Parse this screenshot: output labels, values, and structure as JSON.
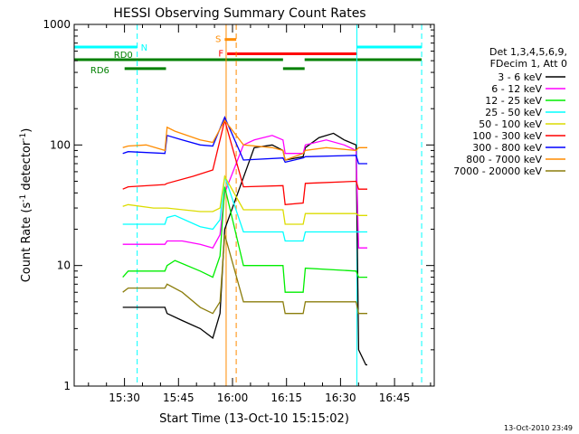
{
  "chart_data": {
    "type": "line",
    "title": "HESSI Observing Summary Count Rates",
    "xlabel": "Start Time (13-Oct-10 15:15:02)",
    "ylabel_parts": [
      "Count Rate (s",
      "-1",
      " detector",
      "-1",
      ")"
    ],
    "x_unit": "minutes since 15:15:02",
    "xlim": [
      0,
      100
    ],
    "ylim": [
      1,
      1000
    ],
    "yscale": "log",
    "xtick_labels": [
      {
        "x": 13.97,
        "label": "15:30"
      },
      {
        "x": 28.97,
        "label": "15:45"
      },
      {
        "x": 43.97,
        "label": "16:00"
      },
      {
        "x": 58.97,
        "label": "16:15"
      },
      {
        "x": 73.97,
        "label": "16:30"
      },
      {
        "x": 88.97,
        "label": "16:45"
      }
    ],
    "ytick_labels": [
      {
        "y": 1,
        "label": "1"
      },
      {
        "y": 10,
        "label": "10"
      },
      {
        "y": 100,
        "label": "100"
      },
      {
        "y": 1000,
        "label": "1000"
      }
    ],
    "legend": {
      "placement": "right",
      "header": [
        "Det 1,3,4,5,6,9,",
        "FDecim 1, Att 0"
      ],
      "entries": [
        {
          "label": "3 - 6 keV",
          "color": "#000000"
        },
        {
          "label": "6 - 12 keV",
          "color": "#ff00ff"
        },
        {
          "label": "12 - 25 keV",
          "color": "#00ee00"
        },
        {
          "label": "25 - 50 keV",
          "color": "#00ffff"
        },
        {
          "label": "50 - 100 keV",
          "color": "#dcdc00"
        },
        {
          "label": "100 - 300 keV",
          "color": "#ff0000"
        },
        {
          "label": "300 - 800 keV",
          "color": "#0000ff"
        },
        {
          "label": "800 - 7000 keV",
          "color": "#ff8c00"
        },
        {
          "label": "7000 - 20000 keV",
          "color": "#8b7d0c"
        }
      ]
    },
    "flag_bars": [
      {
        "label": "N",
        "color": "#00ffff",
        "level": 650,
        "segments": [
          [
            0,
            17.5
          ],
          [
            78.5,
            96.5
          ]
        ]
      },
      {
        "label": "RD0",
        "color": "#008000",
        "level": 510,
        "segments": [
          [
            0,
            58
          ],
          [
            64,
            96.5
          ]
        ]
      },
      {
        "label": "RD6",
        "color": "#008000",
        "level": 430,
        "segments": [
          [
            14,
            25.5
          ],
          [
            58,
            64
          ]
        ]
      },
      {
        "label": "S",
        "color": "#ff8c00",
        "level": 750,
        "segments": [
          [
            41.8,
            45
          ]
        ]
      },
      {
        "label": "F",
        "color": "#ff0000",
        "level": 570,
        "segments": [
          [
            42.5,
            78.5
          ]
        ]
      }
    ],
    "vlines": [
      {
        "x": 17.5,
        "color": "#00ffff",
        "style": "dashed"
      },
      {
        "x": 96.5,
        "color": "#00ffff",
        "style": "dashed"
      },
      {
        "x": 45,
        "color": "#ff8c00",
        "style": "dashed"
      },
      {
        "x": 42.2,
        "color": "#ff8c00",
        "style": "solid"
      },
      {
        "x": 0,
        "color": "#00ffff",
        "style": "solid"
      },
      {
        "x": 78.5,
        "color": "#00ffff",
        "style": "solid"
      }
    ],
    "series": [
      {
        "name": "3 - 6 keV",
        "color": "#000000",
        "x": [
          13.5,
          25.2,
          25.8,
          30,
          35,
          38.5,
          40.5,
          41.8,
          50,
          55,
          58,
          58.6,
          63.6,
          64.2,
          68,
          72,
          75,
          78.3,
          79,
          81,
          81.4
        ],
        "y": [
          4.5,
          4.5,
          4.0,
          3.5,
          3.0,
          2.5,
          4.0,
          20,
          95,
          100,
          90,
          75,
          80,
          95,
          115,
          125,
          110,
          100,
          2.0,
          1.5,
          1.5
        ]
      },
      {
        "name": "6 - 12 keV",
        "color": "#ff00ff",
        "x": [
          13.5,
          25.2,
          25.8,
          30,
          35,
          38.5,
          40.5,
          41.8,
          47,
          50,
          55,
          58,
          58.6,
          63.6,
          64.2,
          70,
          75,
          78.3,
          79,
          81.4
        ],
        "y": [
          15,
          15,
          16,
          16,
          15,
          14,
          18,
          40,
          100,
          110,
          120,
          110,
          85,
          85,
          100,
          110,
          100,
          90,
          14,
          14
        ]
      },
      {
        "name": "12 - 25 keV",
        "color": "#00ee00",
        "x": [
          13.5,
          15,
          25.2,
          25.8,
          28,
          35,
          38.5,
          40.5,
          41.8,
          47,
          58,
          58.6,
          63.6,
          64.2,
          78.3,
          79,
          81.4
        ],
        "y": [
          8,
          9,
          9,
          10,
          11,
          9,
          8,
          12,
          45,
          10,
          10,
          6,
          6,
          9.5,
          9,
          8,
          8
        ]
      },
      {
        "name": "25 - 50 keV",
        "color": "#00ffff",
        "x": [
          13.5,
          15,
          25.2,
          25.8,
          28,
          35,
          38.5,
          40.5,
          41.8,
          47,
          58,
          58.6,
          63.6,
          64.2,
          78.3,
          79,
          81.4
        ],
        "y": [
          22,
          22,
          22,
          25,
          26,
          21,
          20,
          24,
          55,
          19,
          19,
          16,
          16,
          19,
          19,
          19,
          19
        ]
      },
      {
        "name": "50 - 100 keV",
        "color": "#dcdc00",
        "x": [
          13.5,
          15,
          22,
          25.2,
          25.8,
          35,
          38.5,
          40.5,
          41.8,
          47,
          58,
          58.6,
          63.6,
          64.2,
          78.3,
          79,
          81.4
        ],
        "y": [
          31,
          32,
          30,
          30,
          30,
          28,
          28,
          30,
          55,
          29,
          29,
          22,
          22,
          27,
          27,
          26,
          26
        ]
      },
      {
        "name": "100 - 300 keV",
        "color": "#ff0000",
        "x": [
          13.5,
          15,
          25.2,
          25.8,
          33,
          38.5,
          41.8,
          47,
          58,
          58.6,
          63.6,
          64.2,
          78.3,
          79,
          81.4
        ],
        "y": [
          43,
          45,
          47,
          48,
          55,
          62,
          160,
          45,
          46,
          32,
          33,
          48,
          50,
          43,
          43
        ]
      },
      {
        "name": "300 - 800 keV",
        "color": "#0000ff",
        "x": [
          13.5,
          15,
          25.2,
          25.8,
          30,
          35,
          38.5,
          41.8,
          47,
          58,
          58.6,
          63.6,
          64.2,
          78.3,
          79,
          81.4
        ],
        "y": [
          85,
          88,
          85,
          120,
          110,
          100,
          98,
          170,
          75,
          78,
          72,
          78,
          80,
          82,
          70,
          70
        ]
      },
      {
        "name": "800 - 7000 keV",
        "color": "#ff8c00",
        "x": [
          13.5,
          15,
          20,
          25.2,
          25.8,
          28,
          35,
          38.5,
          41.8,
          47,
          55,
          58,
          58.6,
          63.6,
          64.2,
          70,
          78.3,
          79,
          81.4
        ],
        "y": [
          95,
          98,
          100,
          90,
          140,
          130,
          110,
          105,
          160,
          100,
          95,
          90,
          75,
          85,
          90,
          95,
          90,
          95,
          95
        ]
      },
      {
        "name": "7000 - 20000 keV",
        "color": "#8b7d0c",
        "x": [
          13.5,
          15,
          25.2,
          25.8,
          30,
          35,
          38.5,
          40.5,
          41.8,
          47,
          58,
          58.6,
          63.6,
          64.2,
          78.3,
          79,
          81.4
        ],
        "y": [
          6,
          6.5,
          6.5,
          7,
          6,
          4.5,
          4,
          5,
          18,
          5,
          5,
          4,
          4,
          5,
          5,
          4,
          4
        ]
      }
    ],
    "grid": false
  },
  "footer": {
    "timestamp": "13-Oct-2010 23:49"
  }
}
